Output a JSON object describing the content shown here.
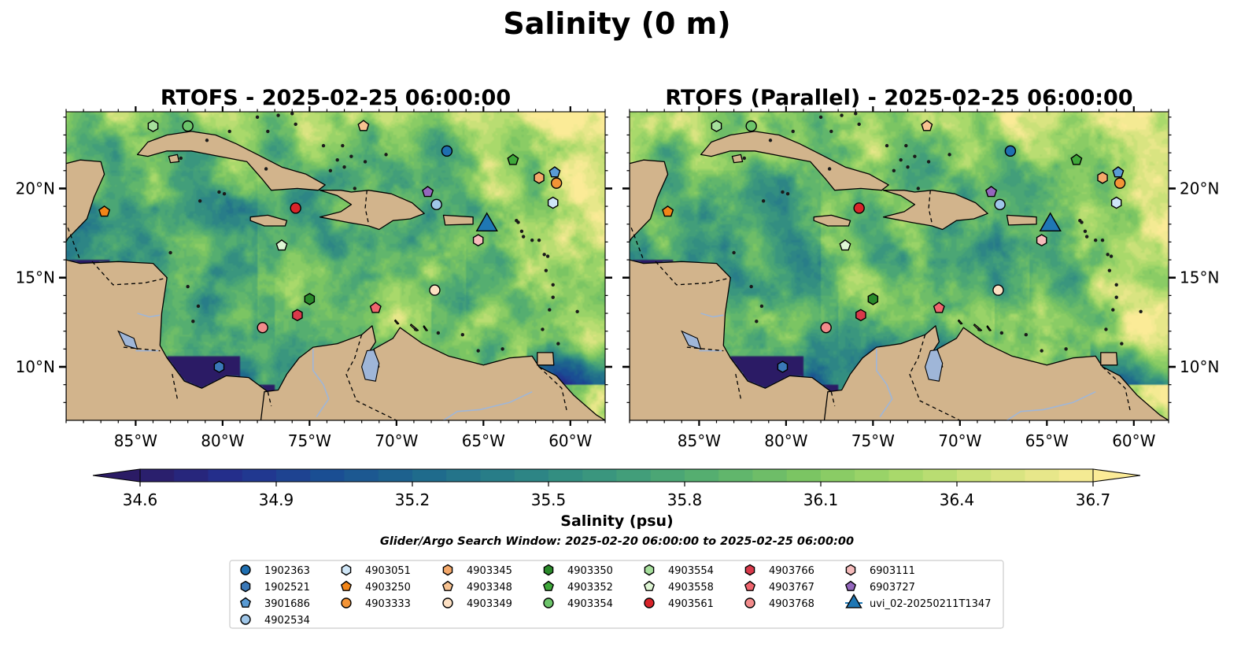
{
  "suptitle": "Salinity (0 m)",
  "panels": [
    {
      "title": "RTOFS - 2025-02-25 06:00:00"
    },
    {
      "title": "RTOFS (Parallel) - 2025-02-25 06:00:00"
    }
  ],
  "colors": {
    "land": "#d2b48c",
    "water_bodies": "#9fb6d8",
    "triangle": "#1f77b4"
  },
  "chart_data": {
    "type": "heatmap",
    "variable": "Salinity",
    "depth": "0 m",
    "projection": "PlateCarree",
    "xlim": [
      -89,
      -58
    ],
    "ylim": [
      7,
      24.3
    ],
    "x_ticks": [
      {
        "value": -85,
        "label": "85°W"
      },
      {
        "value": -80,
        "label": "80°W"
      },
      {
        "value": -75,
        "label": "75°W"
      },
      {
        "value": -70,
        "label": "70°W"
      },
      {
        "value": -65,
        "label": "65°W"
      },
      {
        "value": -60,
        "label": "60°W"
      }
    ],
    "y_ticks": [
      {
        "value": 10,
        "label": "10°N"
      },
      {
        "value": 15,
        "label": "15°N"
      },
      {
        "value": 20,
        "label": "20°N"
      }
    ],
    "colorbar": {
      "label": "Salinity (psu)",
      "min": 34.6,
      "max": 36.7,
      "step": 0.075,
      "extend": "both",
      "ticks": [
        {
          "value": 34.6,
          "label": "34.6"
        },
        {
          "value": 34.9,
          "label": "34.9"
        },
        {
          "value": 35.2,
          "label": "35.2"
        },
        {
          "value": 35.5,
          "label": "35.5"
        },
        {
          "value": 35.8,
          "label": "35.8"
        },
        {
          "value": 36.1,
          "label": "36.1"
        },
        {
          "value": 36.4,
          "label": "36.4"
        },
        {
          "value": 36.7,
          "label": "36.7"
        }
      ],
      "colormap": [
        "#2b1b65",
        "#23308f",
        "#1a4f93",
        "#1f6a8c",
        "#2b8386",
        "#3d9a7c",
        "#58b06f",
        "#7cc663",
        "#a7d96a",
        "#d5e37e",
        "#fbeb97"
      ]
    },
    "search_window": "Glider/Argo Search Window: 2025-02-20 06:00:00 to 2025-02-25 06:00:00",
    "panel_fields": [
      {
        "base": 35.9,
        "west_amp": 0.25,
        "east_salty": 0.55,
        "coast_fresh": 0.35
      },
      {
        "base": 35.9,
        "west_amp": 0.25,
        "east_salty": 0.6,
        "coast_fresh": 0.55
      }
    ],
    "floats": [
      {
        "id": "1902363",
        "marker": "circle",
        "color": "#1f6fb0",
        "lon": -67.1,
        "lat": 22.1
      },
      {
        "id": "1902521",
        "marker": "hexagon",
        "color": "#3a78b8",
        "lon": -80.2,
        "lat": 10.0
      },
      {
        "id": "3901686",
        "marker": "pentagon",
        "color": "#5a9bd4",
        "lon": -60.9,
        "lat": 20.9
      },
      {
        "id": "4902534",
        "marker": "circle",
        "color": "#9fc6e8",
        "lon": -67.7,
        "lat": 19.1
      },
      {
        "id": "4903051",
        "marker": "hexagon",
        "color": "#cfe6f7",
        "lon": -61.0,
        "lat": 19.2
      },
      {
        "id": "4903250",
        "marker": "pentagon",
        "color": "#f28518",
        "lon": -86.8,
        "lat": 18.7
      },
      {
        "id": "4903333",
        "marker": "circle",
        "color": "#f39436",
        "lon": -60.8,
        "lat": 20.3
      },
      {
        "id": "4903345",
        "marker": "hexagon",
        "color": "#f4a86a",
        "lon": -61.8,
        "lat": 20.6
      },
      {
        "id": "4903348",
        "marker": "pentagon",
        "color": "#f7c291",
        "lon": -71.9,
        "lat": 23.5
      },
      {
        "id": "4903349",
        "marker": "circle",
        "color": "#fde0c3",
        "lon": -67.8,
        "lat": 14.3
      },
      {
        "id": "4903350",
        "marker": "hexagon",
        "color": "#2a8a2a",
        "lon": -75.0,
        "lat": 13.8
      },
      {
        "id": "4903352",
        "marker": "pentagon",
        "color": "#3fa83a",
        "lon": -63.3,
        "lat": 21.6
      },
      {
        "id": "4903354",
        "marker": "circle",
        "color": "#6cc46a",
        "lon": -82.0,
        "lat": 23.5
      },
      {
        "id": "4903554",
        "marker": "hexagon",
        "color": "#a6df9c",
        "lon": -84.0,
        "lat": 23.5
      },
      {
        "id": "4903558",
        "marker": "pentagon",
        "color": "#dff6d5",
        "lon": -76.6,
        "lat": 16.8
      },
      {
        "id": "4903561",
        "marker": "circle",
        "color": "#d8242a",
        "lon": -75.8,
        "lat": 18.9
      },
      {
        "id": "4903766",
        "marker": "hexagon",
        "color": "#d9394a",
        "lon": -75.7,
        "lat": 12.9
      },
      {
        "id": "4903767",
        "marker": "pentagon",
        "color": "#f0656e",
        "lon": -71.2,
        "lat": 13.3
      },
      {
        "id": "4903768",
        "marker": "circle",
        "color": "#f28b8b",
        "lon": -77.7,
        "lat": 12.2
      },
      {
        "id": "6903111",
        "marker": "hexagon",
        "color": "#f6bcbc",
        "lon": -65.3,
        "lat": 17.1
      },
      {
        "id": "6903727",
        "marker": "pentagon",
        "color": "#9467bd",
        "lon": -68.2,
        "lat": 19.8
      },
      {
        "id": "uvi_02-20250211T1347",
        "marker": "triangle",
        "color": "#1f77b4",
        "lon": -64.8,
        "lat": 18.1
      }
    ]
  }
}
